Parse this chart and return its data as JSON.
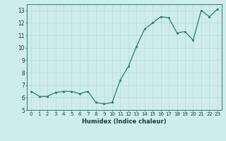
{
  "x": [
    0,
    1,
    2,
    3,
    4,
    5,
    6,
    7,
    8,
    9,
    10,
    11,
    12,
    13,
    14,
    15,
    16,
    17,
    18,
    19,
    20,
    21,
    22,
    23
  ],
  "y": [
    6.5,
    6.1,
    6.1,
    6.4,
    6.5,
    6.5,
    6.3,
    6.5,
    5.6,
    5.5,
    5.6,
    7.4,
    8.5,
    10.1,
    11.5,
    12.0,
    12.5,
    12.4,
    11.2,
    11.3,
    10.6,
    13.0,
    12.5,
    13.1
  ],
  "xlabel": "Humidex (Indice chaleur)",
  "ylim": [
    5,
    13.5
  ],
  "xlim": [
    -0.5,
    23.5
  ],
  "yticks": [
    5,
    6,
    7,
    8,
    9,
    10,
    11,
    12,
    13
  ],
  "xticks": [
    0,
    1,
    2,
    3,
    4,
    5,
    6,
    7,
    8,
    9,
    10,
    11,
    12,
    13,
    14,
    15,
    16,
    17,
    18,
    19,
    20,
    21,
    22,
    23
  ],
  "line_color": "#2d7a72",
  "marker_color": "#2d7a72",
  "bg_color": "#cdecea",
  "grid_color": "#b8dbd8",
  "axis_color": "#2d7a72",
  "label_color": "#1a3a3a",
  "tick_fontsize": 5.0,
  "xlabel_fontsize": 6.0
}
